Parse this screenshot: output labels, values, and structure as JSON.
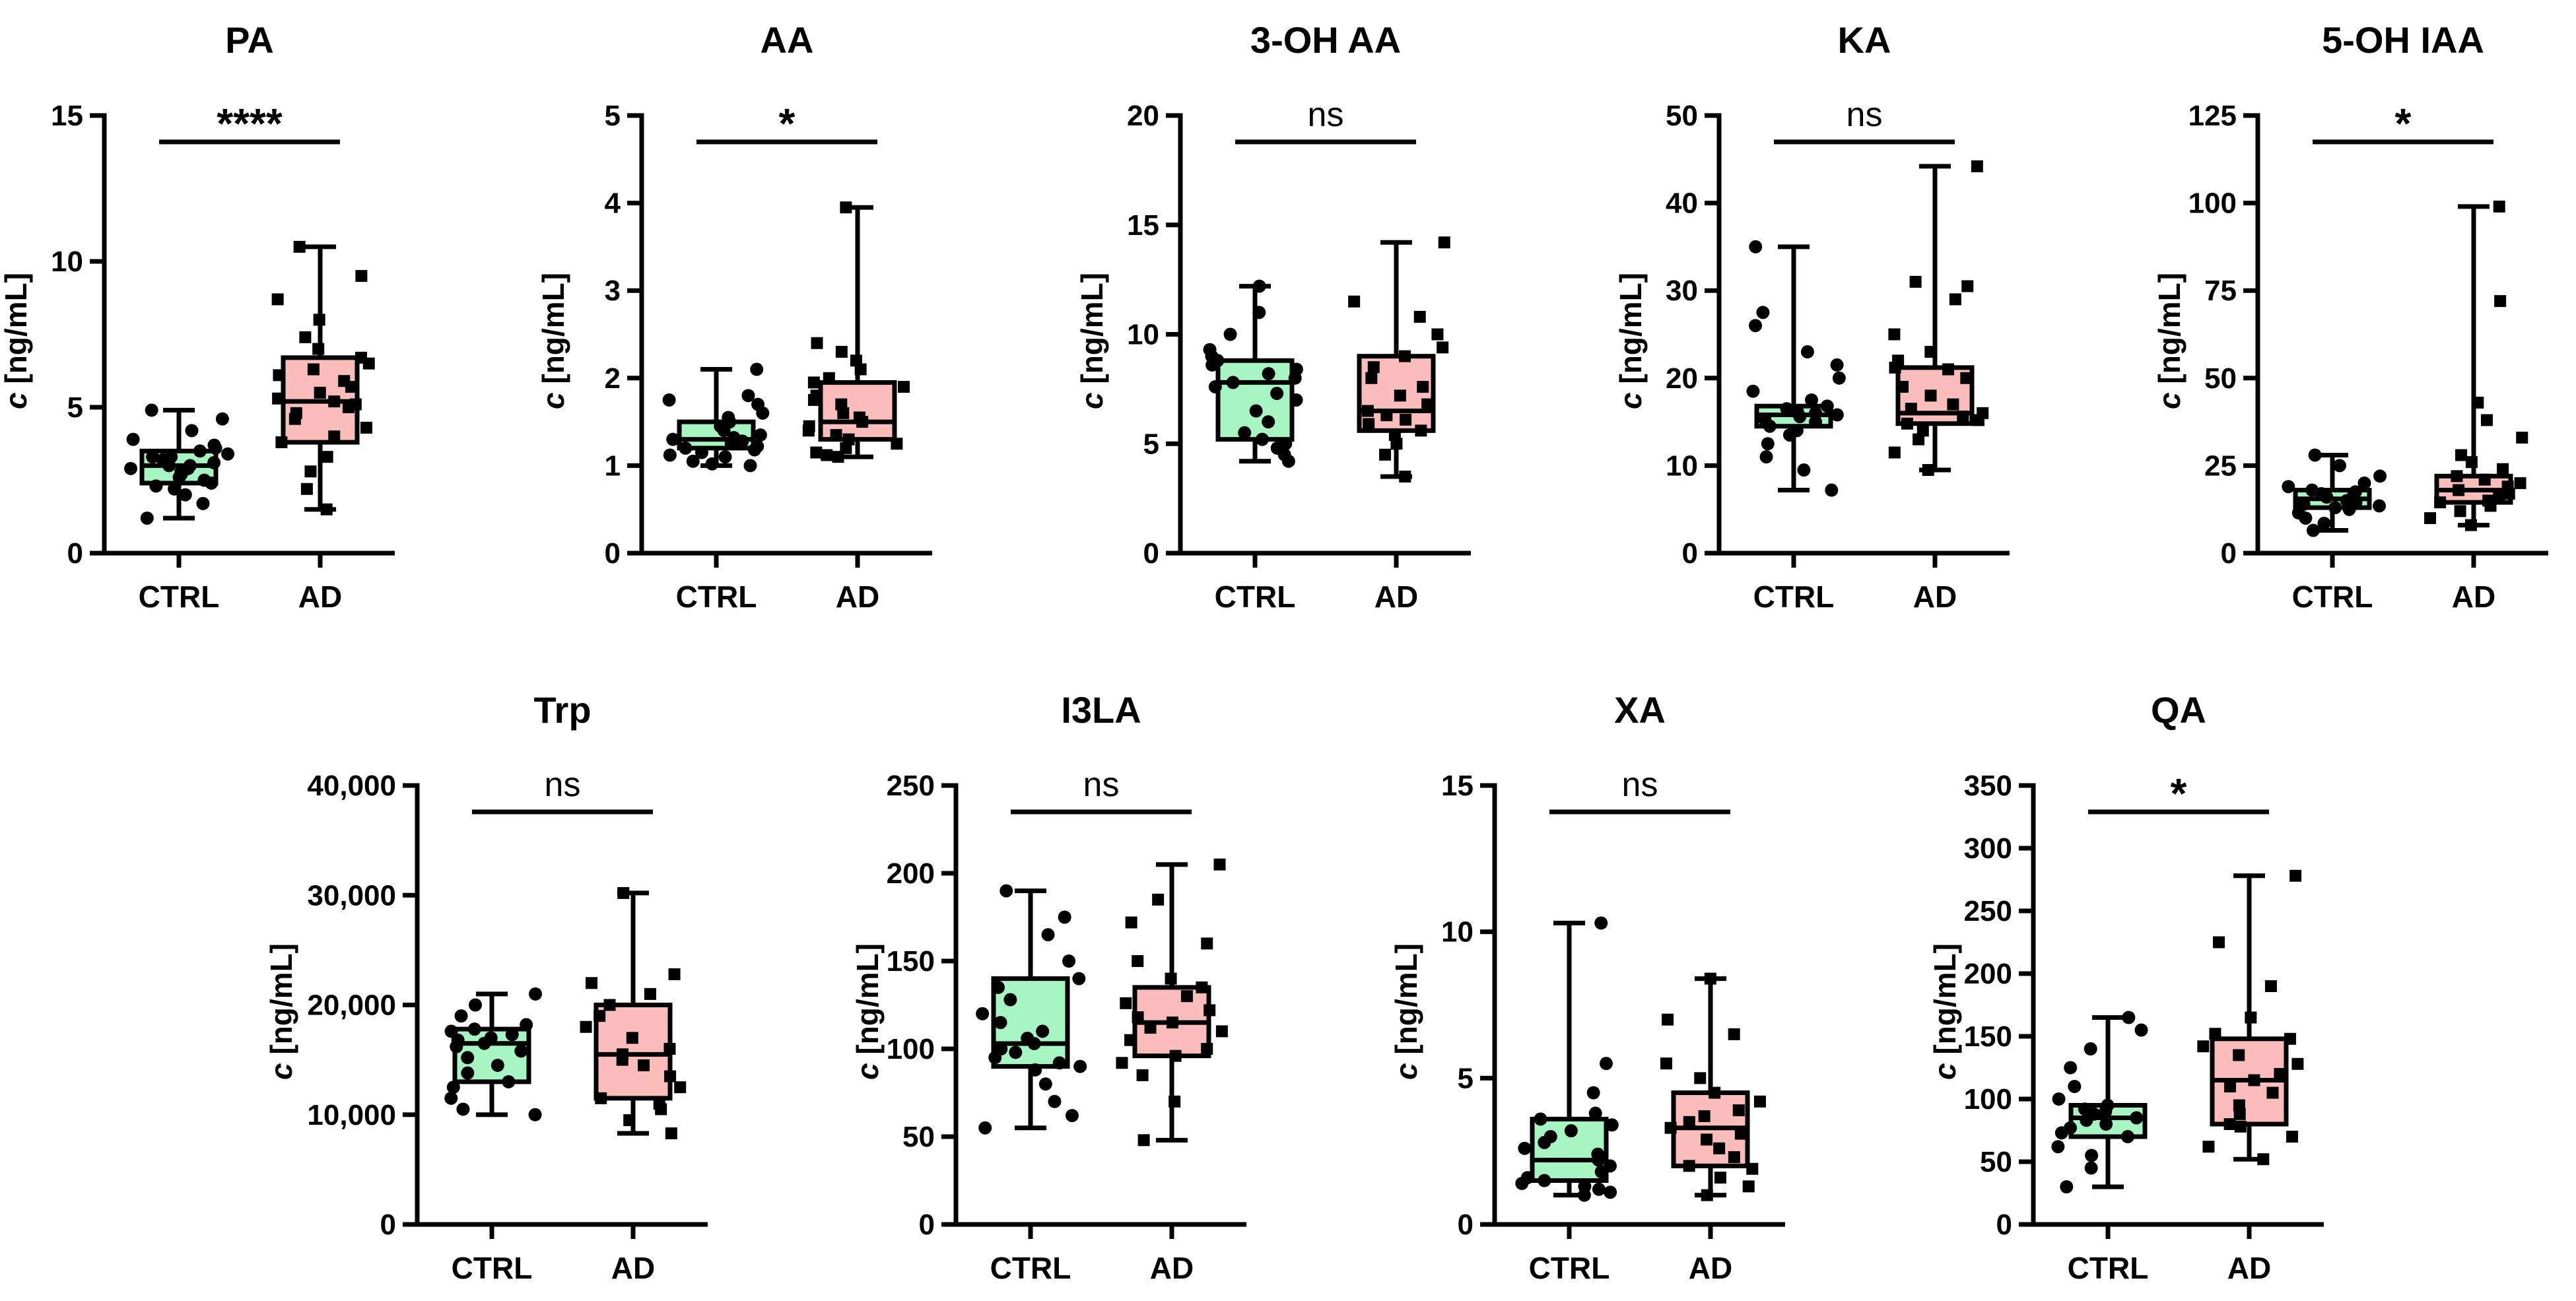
{
  "colors": {
    "ctrl_fill": "#a8f5c4",
    "ad_fill": "#fbbcbc",
    "ink": "#000000"
  },
  "ylabel": {
    "symbol": "c",
    "unit": "[ng/mL]"
  },
  "chart_data": [
    {
      "type": "box",
      "title": "PA",
      "categories": [
        "CTRL",
        "AD"
      ],
      "yticks": [
        "0",
        "5",
        "10",
        "15"
      ],
      "ylim": [
        0,
        15
      ],
      "significance": "****",
      "series": [
        {
          "name": "CTRL",
          "min": 1.2,
          "q1": 2.4,
          "median": 3.0,
          "q3": 3.5,
          "max": 4.9,
          "points": [
            1.2,
            1.7,
            2.0,
            2.2,
            2.3,
            2.4,
            2.5,
            2.6,
            2.7,
            2.8,
            2.9,
            2.9,
            3.0,
            3.0,
            3.1,
            3.2,
            3.3,
            3.3,
            3.4,
            3.5,
            3.6,
            3.7,
            3.9,
            4.2,
            4.6,
            4.9
          ]
        },
        {
          "name": "AD",
          "min": 1.5,
          "q1": 3.8,
          "median": 5.2,
          "q3": 6.7,
          "max": 10.5,
          "points": [
            1.5,
            2.2,
            2.8,
            3.3,
            3.8,
            4.0,
            4.3,
            4.6,
            4.8,
            5.0,
            5.1,
            5.2,
            5.3,
            5.5,
            5.7,
            5.9,
            6.1,
            6.3,
            6.5,
            6.7,
            7.0,
            7.4,
            8.0,
            8.7,
            9.5,
            10.5
          ]
        }
      ]
    },
    {
      "type": "box",
      "title": "AA",
      "categories": [
        "CTRL",
        "AD"
      ],
      "yticks": [
        "0",
        "1",
        "2",
        "3",
        "4",
        "5"
      ],
      "ylim": [
        0,
        5
      ],
      "significance": "*",
      "series": [
        {
          "name": "CTRL",
          "min": 1.0,
          "q1": 1.2,
          "median": 1.3,
          "q3": 1.5,
          "max": 2.1,
          "points": [
            1.0,
            1.02,
            1.05,
            1.1,
            1.12,
            1.15,
            1.18,
            1.2,
            1.22,
            1.25,
            1.28,
            1.3,
            1.32,
            1.35,
            1.4,
            1.45,
            1.5,
            1.55,
            1.6,
            1.7,
            1.75,
            1.8,
            2.1
          ]
        },
        {
          "name": "AD",
          "min": 1.1,
          "q1": 1.3,
          "median": 1.5,
          "q3": 1.95,
          "max": 3.95,
          "points": [
            1.1,
            1.12,
            1.15,
            1.2,
            1.25,
            1.3,
            1.35,
            1.4,
            1.45,
            1.5,
            1.55,
            1.6,
            1.7,
            1.75,
            1.8,
            1.9,
            1.95,
            2.0,
            2.1,
            2.2,
            2.3,
            2.4,
            3.95
          ]
        }
      ]
    },
    {
      "type": "box",
      "title": "3-OH AA",
      "categories": [
        "CTRL",
        "AD"
      ],
      "yticks": [
        "0",
        "5",
        "10",
        "15",
        "20"
      ],
      "ylim": [
        0,
        20
      ],
      "significance": "ns",
      "series": [
        {
          "name": "CTRL",
          "min": 4.2,
          "q1": 5.2,
          "median": 7.8,
          "q3": 8.8,
          "max": 12.2,
          "points": [
            4.2,
            4.5,
            4.8,
            5.0,
            5.2,
            5.5,
            6.0,
            6.5,
            7.0,
            7.3,
            7.6,
            7.8,
            8.0,
            8.2,
            8.4,
            8.6,
            8.8,
            9.0,
            9.3,
            10.0,
            11.0,
            12.2
          ]
        },
        {
          "name": "AD",
          "min": 3.5,
          "q1": 5.6,
          "median": 6.5,
          "q3": 9.0,
          "max": 14.2,
          "points": [
            3.5,
            4.5,
            5.0,
            5.4,
            5.6,
            5.9,
            6.1,
            6.3,
            6.5,
            6.8,
            7.2,
            7.6,
            8.0,
            8.5,
            9.0,
            9.4,
            10.0,
            10.8,
            11.5,
            14.2
          ]
        }
      ]
    },
    {
      "type": "box",
      "title": "KA",
      "categories": [
        "CTRL",
        "AD"
      ],
      "yticks": [
        "0",
        "10",
        "20",
        "30",
        "40",
        "50"
      ],
      "ylim": [
        0,
        50
      ],
      "significance": "ns",
      "series": [
        {
          "name": "CTRL",
          "min": 7.2,
          "q1": 14.5,
          "median": 15.8,
          "q3": 16.8,
          "max": 35.0,
          "points": [
            7.2,
            9.5,
            11.0,
            12.5,
            13.5,
            14.0,
            14.5,
            15.0,
            15.3,
            15.6,
            15.8,
            16.0,
            16.2,
            16.5,
            16.8,
            17.5,
            18.5,
            20.0,
            21.5,
            23.0,
            26.0,
            27.5,
            35.0
          ]
        },
        {
          "name": "AD",
          "min": 9.5,
          "q1": 14.8,
          "median": 16.0,
          "q3": 21.2,
          "max": 44.2,
          "points": [
            9.5,
            11.5,
            13.0,
            14.0,
            14.8,
            15.2,
            15.6,
            16.0,
            16.5,
            17.0,
            18.0,
            19.0,
            20.0,
            21.0,
            21.2,
            22.0,
            23.0,
            25.0,
            29.0,
            30.5,
            31.0,
            44.2
          ]
        }
      ]
    },
    {
      "type": "box",
      "title": "5-OH IAA",
      "categories": [
        "CTRL",
        "AD"
      ],
      "yticks": [
        "0",
        "25",
        "50",
        "75",
        "100",
        "125"
      ],
      "ylim": [
        0,
        125
      ],
      "significance": "*",
      "series": [
        {
          "name": "CTRL",
          "min": 6.5,
          "q1": 13.0,
          "median": 15.5,
          "q3": 18.0,
          "max": 28.0,
          "points": [
            6.5,
            8.5,
            10.0,
            11.5,
            12.5,
            13.0,
            13.5,
            14.0,
            14.5,
            15.0,
            15.5,
            16.0,
            16.5,
            17.0,
            17.5,
            18.0,
            19.0,
            20.0,
            22.0,
            25.0,
            28.0
          ]
        },
        {
          "name": "AD",
          "min": 8.0,
          "q1": 14.5,
          "median": 18.0,
          "q3": 22.0,
          "max": 99.0,
          "points": [
            8.0,
            10.0,
            12.0,
            13.5,
            14.5,
            15.0,
            16.0,
            17.0,
            18.0,
            19.0,
            20.0,
            21.0,
            22.0,
            24.0,
            26.0,
            28.0,
            33.0,
            38.0,
            43.0,
            72.0,
            99.0
          ]
        }
      ]
    },
    {
      "type": "box",
      "title": "Trp",
      "categories": [
        "CTRL",
        "AD"
      ],
      "yticks": [
        "0",
        "10,000",
        "20,000",
        "30,000",
        "40,000"
      ],
      "ylim": [
        0,
        40000
      ],
      "significance": "ns",
      "series": [
        {
          "name": "CTRL",
          "min": 10000,
          "q1": 13000,
          "median": 16500,
          "q3": 17800,
          "max": 21000,
          "points": [
            10000,
            10500,
            11500,
            12500,
            13000,
            13800,
            14500,
            15200,
            15800,
            16200,
            16500,
            16800,
            17000,
            17300,
            17600,
            17800,
            18200,
            19000,
            20000,
            21000
          ]
        },
        {
          "name": "AD",
          "min": 8300,
          "q1": 11500,
          "median": 15500,
          "q3": 20000,
          "max": 30200,
          "points": [
            8300,
            9500,
            10500,
            11000,
            11500,
            12500,
            13500,
            14500,
            15000,
            15500,
            16000,
            17000,
            18000,
            19000,
            20000,
            21000,
            22000,
            22800,
            30200
          ]
        }
      ]
    },
    {
      "type": "box",
      "title": "I3LA",
      "categories": [
        "CTRL",
        "AD"
      ],
      "yticks": [
        "0",
        "50",
        "100",
        "150",
        "200",
        "250"
      ],
      "ylim": [
        0,
        250
      ],
      "significance": "ns",
      "series": [
        {
          "name": "CTRL",
          "min": 55,
          "q1": 90,
          "median": 103,
          "q3": 140,
          "max": 190,
          "points": [
            55,
            62,
            70,
            80,
            88,
            90,
            92,
            95,
            98,
            100,
            103,
            106,
            110,
            115,
            120,
            128,
            135,
            140,
            150,
            165,
            175,
            190
          ]
        },
        {
          "name": "AD",
          "min": 48,
          "q1": 96,
          "median": 115,
          "q3": 135,
          "max": 205,
          "points": [
            48,
            70,
            85,
            92,
            96,
            100,
            105,
            110,
            112,
            115,
            118,
            122,
            126,
            130,
            135,
            140,
            150,
            160,
            172,
            185,
            205
          ]
        }
      ]
    },
    {
      "type": "box",
      "title": "XA",
      "categories": [
        "CTRL",
        "AD"
      ],
      "yticks": [
        "0",
        "5",
        "10",
        "15"
      ],
      "ylim": [
        0,
        15
      ],
      "significance": "ns",
      "series": [
        {
          "name": "CTRL",
          "min": 1.0,
          "q1": 1.5,
          "median": 2.2,
          "q3": 3.6,
          "max": 10.3,
          "points": [
            1.0,
            1.1,
            1.2,
            1.3,
            1.4,
            1.5,
            1.6,
            1.8,
            2.0,
            2.2,
            2.4,
            2.6,
            2.8,
            3.0,
            3.2,
            3.4,
            3.6,
            3.8,
            4.5,
            5.5,
            10.3
          ]
        },
        {
          "name": "AD",
          "min": 1.0,
          "q1": 2.0,
          "median": 3.3,
          "q3": 4.5,
          "max": 8.4,
          "points": [
            1.0,
            1.3,
            1.6,
            1.9,
            2.0,
            2.3,
            2.6,
            2.9,
            3.1,
            3.3,
            3.5,
            3.7,
            3.9,
            4.2,
            4.5,
            5.0,
            5.5,
            6.5,
            7.0,
            8.4
          ]
        }
      ]
    },
    {
      "type": "box",
      "title": "QA",
      "categories": [
        "CTRL",
        "AD"
      ],
      "yticks": [
        "0",
        "50",
        "100",
        "150",
        "200",
        "250",
        "300",
        "350"
      ],
      "ylim": [
        0,
        350
      ],
      "significance": "*",
      "series": [
        {
          "name": "CTRL",
          "min": 30,
          "q1": 70,
          "median": 85,
          "q3": 95,
          "max": 165,
          "points": [
            30,
            45,
            55,
            62,
            70,
            73,
            77,
            80,
            83,
            85,
            88,
            90,
            92,
            95,
            100,
            110,
            125,
            140,
            155,
            165
          ]
        },
        {
          "name": "AD",
          "min": 52,
          "q1": 80,
          "median": 115,
          "q3": 148,
          "max": 278,
          "points": [
            52,
            62,
            70,
            78,
            80,
            88,
            95,
            105,
            110,
            115,
            120,
            128,
            135,
            142,
            148,
            152,
            165,
            190,
            225,
            278
          ]
        }
      ]
    }
  ]
}
